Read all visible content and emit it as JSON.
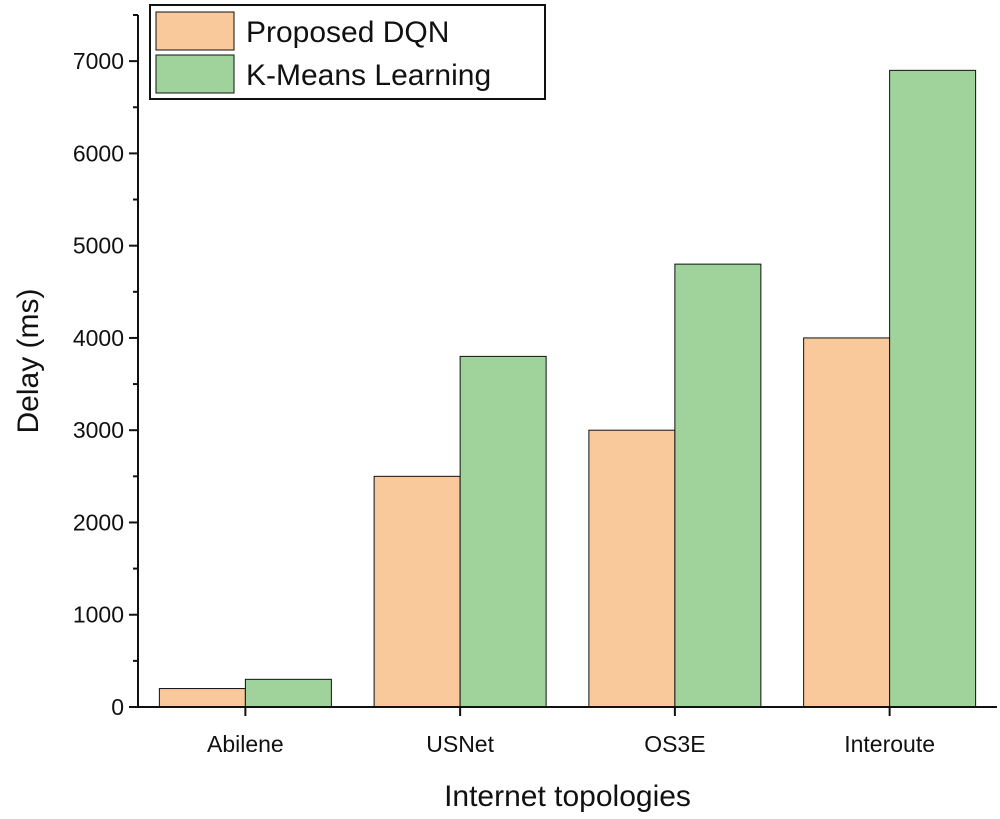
{
  "chart_data": {
    "type": "bar",
    "title": "",
    "xlabel": "Internet topologies",
    "ylabel": "Delay (ms)",
    "categories": [
      "Abilene",
      "USNet",
      "OS3E",
      "Interoute"
    ],
    "series": [
      {
        "name": "Proposed DQN",
        "values": [
          200,
          2500,
          3000,
          4000
        ],
        "color": "#f9c89b"
      },
      {
        "name": "K-Means Learning",
        "values": [
          300,
          3800,
          4800,
          6900
        ],
        "color": "#9fd39b"
      }
    ],
    "ylim": [
      0,
      7500
    ],
    "yticks": [
      0,
      1000,
      2000,
      3000,
      4000,
      5000,
      6000,
      7000
    ],
    "y_minor_step": 500,
    "grid": false,
    "legend_position": "top-left"
  }
}
